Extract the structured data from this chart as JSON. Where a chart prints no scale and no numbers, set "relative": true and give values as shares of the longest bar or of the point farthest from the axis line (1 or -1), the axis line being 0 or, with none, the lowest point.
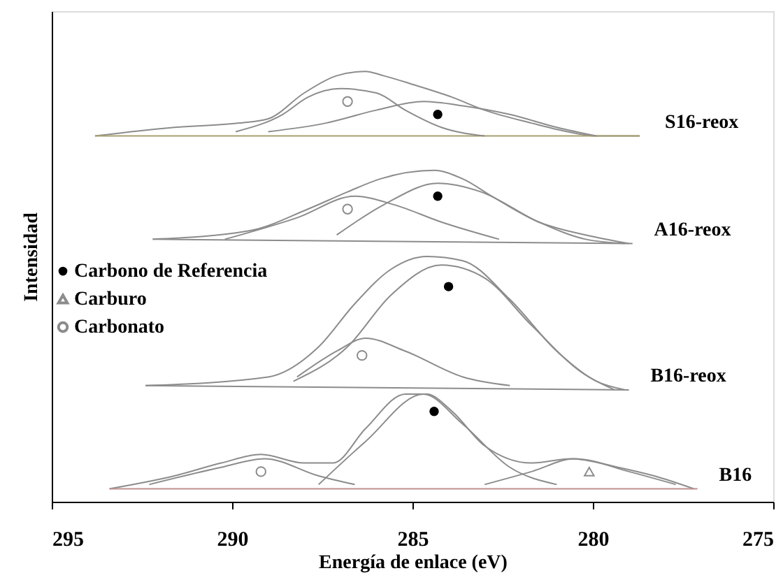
{
  "chart_data": {
    "type": "line",
    "relative": true,
    "xlabel": "Energía de enlace (eV)",
    "ylabel": "Intensidad",
    "xlim": [
      295,
      275
    ],
    "xticks": [
      295,
      290,
      285,
      280,
      275
    ],
    "grid": false,
    "legend": "left",
    "line_style": "solid",
    "series": [
      {
        "name": "S16-reox",
        "color": "#8c8c8c",
        "x": [
          293.8,
          291.6,
          289.8,
          289.0,
          288.0,
          287.1,
          286.3,
          285.8,
          285.0,
          283.9,
          283.0,
          281.7,
          280.7,
          279.9,
          278.7
        ],
        "values": [
          0.85,
          0.87,
          0.88,
          0.89,
          0.95,
          0.99,
          1.0,
          0.99,
          0.97,
          0.94,
          0.91,
          0.88,
          0.86,
          0.85,
          0.85
        ]
      },
      {
        "color": "#a8a070",
        "x": [
          293.8,
          278.7
        ],
        "values": [
          0.85,
          0.85
        ]
      },
      {
        "color": "#8c8c8c",
        "x": [
          289.9,
          288.6,
          287.9,
          287.0,
          286.0,
          285.2,
          284.2,
          283.0
        ],
        "values": [
          0.86,
          0.9,
          0.94,
          0.96,
          0.95,
          0.91,
          0.87,
          0.85
        ]
      },
      {
        "color": "#8c8c8c",
        "x": [
          289.0,
          287.4,
          286.0,
          284.7,
          283.6,
          282.3,
          281.0,
          279.9
        ],
        "values": [
          0.86,
          0.88,
          0.91,
          0.93,
          0.92,
          0.9,
          0.87,
          0.85
        ]
      },
      {
        "name": "A16-reox",
        "color": "#8c8c8c",
        "x": [
          292.2,
          289.5,
          287.9,
          286.8,
          285.9,
          284.4,
          283.6,
          282.8,
          281.5,
          280.2,
          279.0
        ],
        "values": [
          0.61,
          0.63,
          0.68,
          0.72,
          0.75,
          0.77,
          0.75,
          0.71,
          0.65,
          0.62,
          0.6
        ]
      },
      {
        "color": "#8c8c8c",
        "x": [
          292.2,
          278.9
        ],
        "values": [
          0.61,
          0.6
        ]
      },
      {
        "color": "#8c8c8c",
        "x": [
          290.2,
          288.2,
          286.6,
          285.5,
          284.2,
          282.6
        ],
        "values": [
          0.61,
          0.66,
          0.71,
          0.69,
          0.65,
          0.61
        ]
      },
      {
        "color": "#8c8c8c",
        "x": [
          287.1,
          285.8,
          284.3,
          283.1,
          281.5,
          280.2,
          279.1
        ],
        "values": [
          0.62,
          0.69,
          0.74,
          0.72,
          0.65,
          0.61,
          0.6
        ]
      },
      {
        "name": "B16-reox",
        "color": "#8c8c8c",
        "x": [
          292.4,
          289.0,
          287.6,
          286.6,
          285.6,
          284.6,
          283.6,
          282.3,
          281.0,
          279.9,
          279.1
        ],
        "values": [
          0.27,
          0.29,
          0.36,
          0.46,
          0.54,
          0.57,
          0.56,
          0.47,
          0.35,
          0.28,
          0.26
        ]
      },
      {
        "color": "#8c8c8c",
        "x": [
          292.4,
          279.0
        ],
        "values": [
          0.27,
          0.26
        ]
      },
      {
        "color": "#8c8c8c",
        "x": [
          288.3,
          286.8,
          285.6,
          284.2,
          283.0,
          281.7,
          280.3,
          279.4
        ],
        "values": [
          0.28,
          0.36,
          0.48,
          0.55,
          0.52,
          0.41,
          0.3,
          0.26
        ]
      },
      {
        "color": "#8c8c8c",
        "x": [
          288.2,
          287.1,
          286.3,
          285.2,
          283.6,
          282.3
        ],
        "values": [
          0.29,
          0.35,
          0.38,
          0.35,
          0.29,
          0.27
        ]
      },
      {
        "name": "B16",
        "color": "#8c8c8c",
        "x": [
          293.4,
          291.6,
          290.3,
          289.2,
          288.0,
          287.2,
          286.3,
          285.2,
          284.6,
          283.9,
          283.0,
          281.7,
          280.6,
          279.3,
          278.3,
          277.2
        ],
        "values": [
          0.03,
          0.06,
          0.09,
          0.11,
          0.09,
          0.09,
          0.17,
          0.25,
          0.25,
          0.21,
          0.13,
          0.09,
          0.1,
          0.08,
          0.06,
          0.03
        ]
      },
      {
        "color": "#c09090",
        "x": [
          293.4,
          277.1
        ],
        "values": [
          0.03,
          0.03
        ]
      },
      {
        "color": "#8c8c8c",
        "x": [
          292.3,
          290.3,
          289.1,
          287.6,
          286.6
        ],
        "values": [
          0.04,
          0.08,
          0.1,
          0.06,
          0.04
        ]
      },
      {
        "color": "#8c8c8c",
        "x": [
          287.6,
          286.3,
          284.7,
          283.6,
          282.3,
          281.0
        ],
        "values": [
          0.04,
          0.14,
          0.25,
          0.18,
          0.08,
          0.04
        ]
      },
      {
        "color": "#8c8c8c",
        "x": [
          283.0,
          281.7,
          280.5,
          279.0,
          277.7
        ],
        "values": [
          0.04,
          0.07,
          0.1,
          0.07,
          0.04
        ]
      },
      {
        "name": "Carbono de Referencia",
        "type": "scatter",
        "marker": "circle",
        "color": "#000000",
        "x": [
          284.3,
          284.3,
          284.0,
          284.4
        ],
        "values": [
          0.9,
          0.71,
          0.5,
          0.21
        ]
      },
      {
        "name": "Carburo",
        "type": "scatter",
        "marker": "triangle",
        "color": "#8c8c8c",
        "x": [
          280.1
        ],
        "values": [
          0.07
        ]
      },
      {
        "name": "Carbonato",
        "type": "scatter",
        "marker": "circle",
        "color": "#8c8c8c",
        "x": [
          286.8,
          286.8,
          286.4,
          289.2
        ],
        "values": [
          0.93,
          0.68,
          0.34,
          0.07
        ]
      }
    ]
  }
}
